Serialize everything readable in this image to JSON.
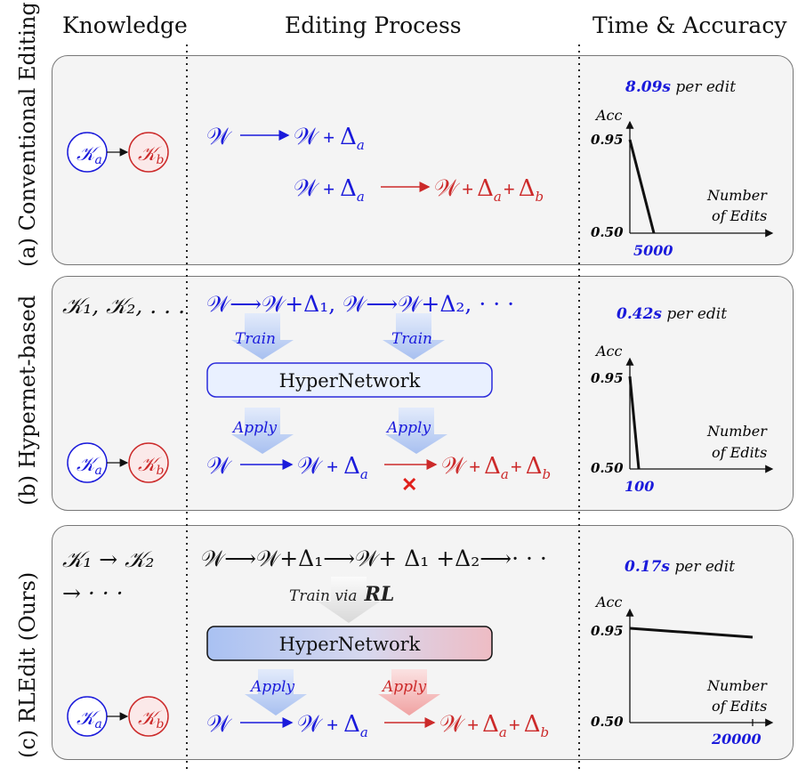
{
  "headers": {
    "knowledge": "Knowledge",
    "process": "Editing Process",
    "time": "Time & Accuracy"
  },
  "row_labels": {
    "a": "(a) Conventional Editing",
    "b": "(b) Hypernet-based",
    "c": "(c) RLEdit (Ours)"
  },
  "math": {
    "W": "𝒲",
    "Ka": "𝒦",
    "a_sub": "a",
    "b_sub": "b",
    "plus": "+",
    "delta": "Δ",
    "k_list": "𝒦₁, 𝒦₂, . . .",
    "k_seq1": "𝒦₁ → 𝒦₂",
    "k_seq2": "→ · · ·",
    "b_top": "𝒲⟶𝒲+Δ₁,  𝒲⟶𝒲+Δ₂,  · · ·",
    "c_top": "𝒲⟶𝒲+Δ₁⟶𝒲+ Δ₁ +Δ₂⟶· · ·"
  },
  "labels": {
    "train": "Train",
    "apply": "Apply",
    "hypernetwork": "HyperNetwork",
    "train_via": "Train via",
    "rl": "RL",
    "fail_mark": "✕"
  },
  "charts": {
    "a": {
      "time_value": "8.09s",
      "time_suffix": " per edit",
      "ylabel": "Acc",
      "xlabel1": "Number",
      "xlabel2": "of Edits",
      "y_high": "0.95",
      "y_low": "0.50",
      "x_tick": "5000"
    },
    "b": {
      "time_value": "0.42s",
      "time_suffix": " per edit",
      "ylabel": "Acc",
      "xlabel1": "Number",
      "xlabel2": "of Edits",
      "y_high": "0.95",
      "y_low": "0.50",
      "x_tick": "100"
    },
    "c": {
      "time_value": "0.17s",
      "time_suffix": " per edit",
      "ylabel": "Acc",
      "xlabel1": "Number",
      "xlabel2": "of Edits",
      "y_high": "0.95",
      "y_low": "0.50",
      "x_tick": "20000"
    }
  },
  "chart_data": [
    {
      "type": "line",
      "title": "8.09s per edit",
      "ylabel": "Acc",
      "xlabel": "Number of Edits",
      "x": [
        0,
        5000
      ],
      "y": [
        0.95,
        0.5
      ]
    },
    {
      "type": "line",
      "title": "0.42s per edit",
      "ylabel": "Acc",
      "xlabel": "Number of Edits",
      "x": [
        0,
        100
      ],
      "y": [
        0.95,
        0.5
      ]
    },
    {
      "type": "line",
      "title": "0.17s per edit",
      "ylabel": "Acc",
      "xlabel": "Number of Edits",
      "x": [
        0,
        20000
      ],
      "y": [
        0.95,
        0.93
      ]
    }
  ],
  "colors": {
    "blue": "#1a1adb",
    "red": "#cc2a2a",
    "panel_bg": "#f4f4f4"
  }
}
